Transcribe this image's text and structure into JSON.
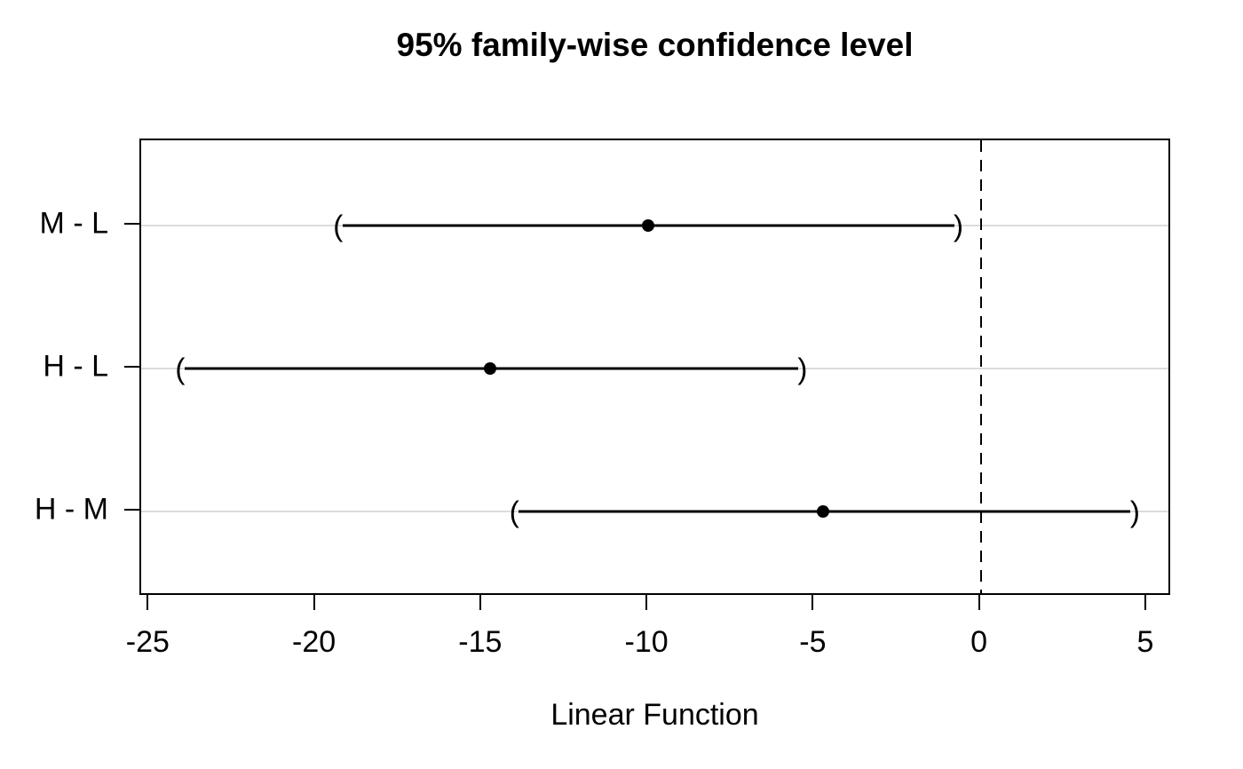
{
  "chart_data": {
    "type": "interval",
    "title": "95% family-wise confidence level",
    "xlabel": "Linear Function",
    "ylabel": "",
    "x_ticks": [
      -25,
      -20,
      -15,
      -10,
      -5,
      0,
      5
    ],
    "xlim": [
      -25.25,
      5.75
    ],
    "ylim": [
      0.4,
      3.6
    ],
    "grid": "horizontal-rows-only",
    "legend": "none",
    "reference_line_x": 0,
    "reference_line_style": "dashed",
    "comparisons": [
      {
        "label": "M - L",
        "y": 3,
        "estimate": -10.0,
        "lower": -19.33,
        "upper": -0.67
      },
      {
        "label": "H - L",
        "y": 2,
        "estimate": -14.75,
        "lower": -24.08,
        "upper": -5.36
      },
      {
        "label": "H - M",
        "y": 1,
        "estimate": -4.75,
        "lower": -14.03,
        "upper": 4.64
      }
    ],
    "interval_end_glyphs": {
      "lower": "(",
      "upper": ")"
    },
    "colors": {
      "foreground": "#000000",
      "background": "#ffffff",
      "gridline": "#dcdcdc"
    }
  }
}
